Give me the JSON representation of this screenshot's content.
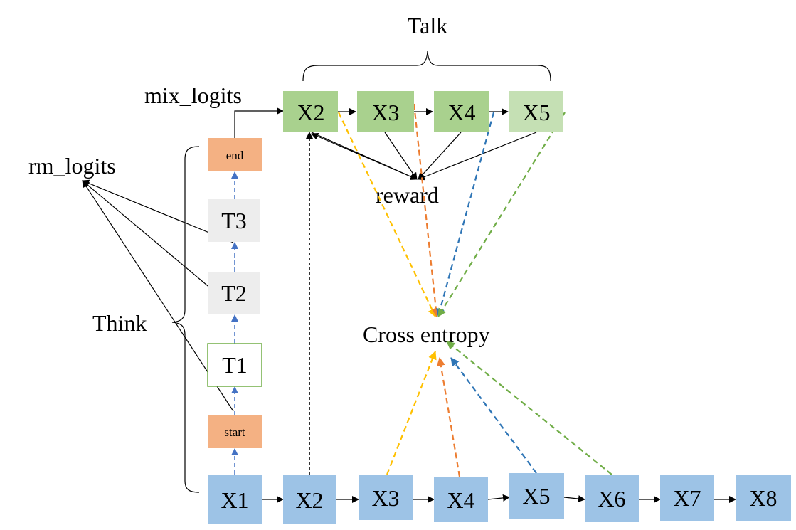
{
  "labels": {
    "talk": "Talk",
    "think": "Think",
    "mix_logits": "mix_logits",
    "rm_logits": "rm_logits",
    "reward": "reward",
    "cross_entropy": "Cross entropy"
  },
  "input_tokens": [
    "X1",
    "X2",
    "X3",
    "X4",
    "X5",
    "X6",
    "X7",
    "X8"
  ],
  "think_tokens": [
    "start",
    "T1",
    "T2",
    "T3",
    "end"
  ],
  "talk_tokens": [
    "X2",
    "X3",
    "X4",
    "X5"
  ],
  "colors": {
    "input_fill": "#9dc3e6",
    "talk_fill": "#a9d18e",
    "talk_fill_light": "#c5e0b4",
    "special_fill": "#f4b183",
    "think_fill": "#ededed",
    "t1_border": "#70ad47",
    "arrow_blue": "#4472c4",
    "arrow_yellow": "#ffc000",
    "arrow_orange": "#ed7d31",
    "arrow_steel": "#2e75b6",
    "arrow_green": "#70ad47"
  }
}
